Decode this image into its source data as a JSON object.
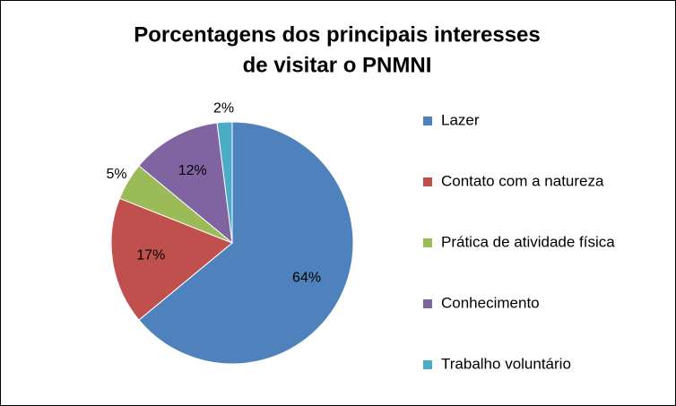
{
  "chart_data": {
    "type": "pie",
    "title": [
      "Porcentagens dos principais interesses",
      "de visitar o PNMNI"
    ],
    "categories": [
      "Lazer",
      "Contato com a natureza",
      "Prática de atividade física",
      "Conhecimento",
      "Trabalho voluntário"
    ],
    "values": [
      64,
      17,
      5,
      12,
      2
    ],
    "value_labels": [
      "64%",
      "17%",
      "5%",
      "12%",
      "2%"
    ],
    "colors": [
      "#4f81bd",
      "#c0504d",
      "#9bbb59",
      "#8064a2",
      "#4bacc6"
    ],
    "legend": "right"
  }
}
